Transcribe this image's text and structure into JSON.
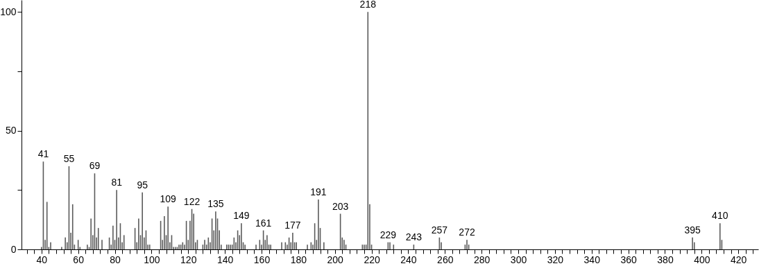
{
  "chart_data": {
    "type": "bar",
    "color": "#5a5a5a",
    "x": [
      40,
      41,
      42,
      43,
      44,
      45,
      51,
      53,
      54,
      55,
      56,
      57,
      58,
      60,
      61,
      65,
      66,
      67,
      68,
      69,
      70,
      71,
      73,
      77,
      78,
      79,
      80,
      81,
      82,
      83,
      84,
      85,
      91,
      92,
      93,
      94,
      95,
      96,
      97,
      98,
      99,
      105,
      106,
      107,
      108,
      109,
      110,
      111,
      112,
      113,
      114,
      115,
      116,
      117,
      118,
      119,
      120,
      121,
      122,
      123,
      124,
      125,
      128,
      129,
      130,
      131,
      132,
      133,
      134,
      135,
      136,
      137,
      138,
      141,
      142,
      143,
      144,
      145,
      146,
      147,
      148,
      149,
      150,
      151,
      157,
      159,
      160,
      161,
      162,
      163,
      164,
      165,
      171,
      173,
      174,
      175,
      176,
      177,
      178,
      179,
      185,
      187,
      188,
      189,
      190,
      191,
      192,
      194,
      203,
      204,
      205,
      206,
      215,
      216,
      217,
      218,
      219,
      220,
      229,
      230,
      232,
      243,
      257,
      258,
      271,
      272,
      273,
      395,
      396,
      410,
      411
    ],
    "values": [
      1,
      37,
      4,
      20,
      1,
      3,
      1,
      5,
      3,
      35,
      7,
      19,
      2,
      4,
      1,
      2,
      1,
      13,
      6,
      32,
      5,
      9,
      4,
      5,
      2,
      10,
      4,
      25,
      5,
      11,
      3,
      6,
      9,
      3,
      13,
      6,
      24,
      5,
      8,
      2,
      2,
      12,
      4,
      14,
      6,
      18,
      3,
      6,
      1,
      1,
      1,
      2,
      2,
      3,
      2,
      12,
      4,
      12,
      17,
      15,
      3,
      4,
      2,
      4,
      2,
      5,
      3,
      13,
      8,
      16,
      13,
      8,
      2,
      2,
      2,
      2,
      2,
      5,
      3,
      8,
      6,
      11,
      3,
      2,
      2,
      4,
      2,
      8,
      4,
      6,
      2,
      2,
      3,
      3,
      2,
      5,
      3,
      7,
      3,
      3,
      2,
      3,
      2,
      11,
      4,
      21,
      9,
      3,
      15,
      5,
      4,
      2,
      2,
      2,
      2,
      100,
      19,
      2,
      3,
      3,
      2,
      2,
      5,
      3,
      2,
      4,
      2,
      5,
      3,
      11,
      4
    ],
    "annotations": [
      {
        "text": "41",
        "x": 41,
        "y": 37
      },
      {
        "text": "55",
        "x": 55,
        "y": 35
      },
      {
        "text": "69",
        "x": 69,
        "y": 32
      },
      {
        "text": "81",
        "x": 81,
        "y": 25
      },
      {
        "text": "95",
        "x": 95,
        "y": 24
      },
      {
        "text": "109",
        "x": 109,
        "y": 18
      },
      {
        "text": "122",
        "x": 122,
        "y": 17
      },
      {
        "text": "135",
        "x": 135,
        "y": 16
      },
      {
        "text": "149",
        "x": 149,
        "y": 11
      },
      {
        "text": "161",
        "x": 161,
        "y": 8
      },
      {
        "text": "177",
        "x": 177,
        "y": 7
      },
      {
        "text": "191",
        "x": 191,
        "y": 21
      },
      {
        "text": "203",
        "x": 203,
        "y": 15
      },
      {
        "text": "218",
        "x": 218,
        "y": 100
      },
      {
        "text": "229",
        "x": 229,
        "y": 3
      },
      {
        "text": "243",
        "x": 243,
        "y": 2
      },
      {
        "text": "257",
        "x": 257,
        "y": 5
      },
      {
        "text": "272",
        "x": 272,
        "y": 4
      },
      {
        "text": "395",
        "x": 395,
        "y": 5
      },
      {
        "text": "410",
        "x": 410,
        "y": 11
      }
    ],
    "xlim": [
      31,
      429
    ],
    "xticks": [
      {
        "value": 32,
        "label": null
      },
      {
        "value": 36,
        "label": null
      },
      40,
      {
        "value": 44,
        "label": null
      },
      {
        "value": 48,
        "label": null
      },
      {
        "value": 52,
        "label": null
      },
      {
        "value": 56,
        "label": null
      },
      60,
      {
        "value": 64,
        "label": null
      },
      {
        "value": 68,
        "label": null
      },
      {
        "value": 72,
        "label": null
      },
      {
        "value": 76,
        "label": null
      },
      80,
      {
        "value": 84,
        "label": null
      },
      {
        "value": 88,
        "label": null
      },
      {
        "value": 92,
        "label": null
      },
      {
        "value": 96,
        "label": null
      },
      100,
      {
        "value": 104,
        "label": null
      },
      {
        "value": 108,
        "label": null
      },
      {
        "value": 112,
        "label": null
      },
      {
        "value": 116,
        "label": null
      },
      120,
      {
        "value": 124,
        "label": null
      },
      {
        "value": 128,
        "label": null
      },
      {
        "value": 132,
        "label": null
      },
      {
        "value": 136,
        "label": null
      },
      140,
      {
        "value": 144,
        "label": null
      },
      {
        "value": 148,
        "label": null
      },
      {
        "value": 152,
        "label": null
      },
      {
        "value": 156,
        "label": null
      },
      160,
      {
        "value": 164,
        "label": null
      },
      {
        "value": 168,
        "label": null
      },
      {
        "value": 172,
        "label": null
      },
      {
        "value": 176,
        "label": null
      },
      180,
      {
        "value": 184,
        "label": null
      },
      {
        "value": 188,
        "label": null
      },
      {
        "value": 192,
        "label": null
      },
      {
        "value": 196,
        "label": null
      },
      200,
      {
        "value": 204,
        "label": null
      },
      {
        "value": 208,
        "label": null
      },
      {
        "value": 212,
        "label": null
      },
      {
        "value": 216,
        "label": null
      },
      220,
      {
        "value": 224,
        "label": null
      },
      {
        "value": 228,
        "label": null
      },
      {
        "value": 232,
        "label": null
      },
      {
        "value": 236,
        "label": null
      },
      240,
      {
        "value": 244,
        "label": null
      },
      {
        "value": 248,
        "label": null
      },
      {
        "value": 252,
        "label": null
      },
      {
        "value": 256,
        "label": null
      },
      260,
      {
        "value": 264,
        "label": null
      },
      {
        "value": 268,
        "label": null
      },
      {
        "value": 272,
        "label": null
      },
      {
        "value": 276,
        "label": null
      },
      280,
      {
        "value": 284,
        "label": null
      },
      {
        "value": 288,
        "label": null
      },
      {
        "value": 292,
        "label": null
      },
      {
        "value": 296,
        "label": null
      },
      300,
      {
        "value": 304,
        "label": null
      },
      {
        "value": 308,
        "label": null
      },
      {
        "value": 312,
        "label": null
      },
      {
        "value": 316,
        "label": null
      },
      320,
      {
        "value": 324,
        "label": null
      },
      {
        "value": 328,
        "label": null
      },
      {
        "value": 332,
        "label": null
      },
      {
        "value": 336,
        "label": null
      },
      340,
      {
        "value": 344,
        "label": null
      },
      {
        "value": 348,
        "label": null
      },
      {
        "value": 352,
        "label": null
      },
      {
        "value": 356,
        "label": null
      },
      360,
      {
        "value": 364,
        "label": null
      },
      {
        "value": 368,
        "label": null
      },
      {
        "value": 372,
        "label": null
      },
      {
        "value": 376,
        "label": null
      },
      380,
      {
        "value": 384,
        "label": null
      },
      {
        "value": 388,
        "label": null
      },
      {
        "value": 392,
        "label": null
      },
      {
        "value": 396,
        "label": null
      },
      400,
      {
        "value": 404,
        "label": null
      },
      {
        "value": 408,
        "label": null
      },
      {
        "value": 412,
        "label": null
      },
      {
        "value": 416,
        "label": null
      },
      420,
      {
        "value": 424,
        "label": null
      },
      {
        "value": 428,
        "label": null
      }
    ],
    "ylim": [
      0,
      105
    ],
    "yticks": [
      0,
      {
        "value": 25,
        "label": null
      },
      50,
      {
        "value": 75,
        "label": null
      },
      100
    ]
  }
}
